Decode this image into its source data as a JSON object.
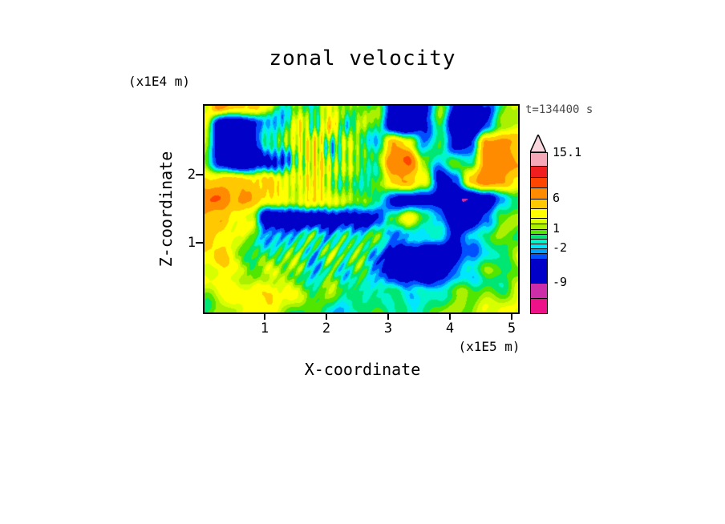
{
  "title": "zonal velocity",
  "timestamp_label": "t=134400 s",
  "axes": {
    "x_label": "X-coordinate",
    "x_unit": "(x1E5 m)",
    "x_ticks": [
      "1",
      "2",
      "3",
      "4",
      "5"
    ],
    "y_label": "Z-coordinate",
    "y_unit": "(x1E4 m)",
    "y_ticks": [
      "2",
      "1"
    ]
  },
  "colorbar": {
    "tip_color": "#FAD7DF",
    "labels": [
      "15.1",
      "6",
      "1",
      "-2",
      "-9"
    ],
    "segments": [
      {
        "color": "#F5A9B8",
        "h": 16,
        "label": "15.1"
      },
      {
        "color": "#F01E1E",
        "h": 14
      },
      {
        "color": "#FF4600",
        "h": 13
      },
      {
        "color": "#FF8C00",
        "h": 14
      },
      {
        "color": "#FFC800",
        "h": 12,
        "label": "6"
      },
      {
        "color": "#FFFF00",
        "h": 12
      },
      {
        "color": "#D7FF00",
        "h": 7
      },
      {
        "color": "#AAF000",
        "h": 7
      },
      {
        "color": "#50E600",
        "h": 6,
        "label": "1"
      },
      {
        "color": "#00E673",
        "h": 6
      },
      {
        "color": "#00F5C8",
        "h": 6
      },
      {
        "color": "#00E6FF",
        "h": 6
      },
      {
        "color": "#00A0FF",
        "h": 6,
        "label": "-2"
      },
      {
        "color": "#0050FF",
        "h": 7
      },
      {
        "color": "#0000C8",
        "h": 30
      },
      {
        "color": "#CC2EAA",
        "h": 19,
        "label": "-9"
      },
      {
        "color": "#EE1289",
        "h": 19
      }
    ]
  },
  "chart_data": {
    "type": "heatmap",
    "title": "zonal velocity",
    "xlabel": "X-coordinate (x1E5 m)",
    "ylabel": "Z-coordinate (x1E4 m)",
    "x_range": [
      0,
      5.12
    ],
    "z_range": [
      0,
      3.05
    ],
    "time_seconds": "t=134400 s",
    "legend_labels": [
      "15.1",
      "6",
      "1",
      "-2",
      "-9"
    ],
    "levels": [
      -10.5,
      -9,
      -4,
      -2.7,
      -2,
      -1.3,
      -0.6,
      0.2,
      1,
      1.8,
      2.6,
      4.3,
      6,
      8.5,
      10.5,
      12.5,
      15.1
    ],
    "colors": [
      "#EE1289",
      "#CC2EAA",
      "#0000C8",
      "#0050FF",
      "#00A0FF",
      "#00E6FF",
      "#00F5C8",
      "#00E673",
      "#50E600",
      "#AAF000",
      "#D7FF00",
      "#FFFF00",
      "#FFC800",
      "#FF8C00",
      "#FF4600",
      "#F01E1E",
      "#F5A9B8",
      "#FAD7DF"
    ],
    "grid": {
      "cols": 21,
      "rows": 12,
      "order": "top-row-first",
      "values": [
        [
          1,
          6,
          6,
          4,
          2.5,
          -1.5,
          3,
          -1,
          2.5,
          0.5,
          2,
          0.5,
          -7,
          -7.5,
          -4,
          0.5,
          -6,
          -7,
          -3,
          0.5,
          1
        ],
        [
          2,
          -6,
          -7,
          -5,
          -1.5,
          -2,
          4,
          -1,
          3,
          -1,
          2,
          0.5,
          -7,
          -8,
          -4,
          0.5,
          -7,
          -7.5,
          -3,
          1,
          1
        ],
        [
          2,
          -7,
          -7.5,
          -6,
          -2,
          0.5,
          3,
          4.5,
          -1,
          2.5,
          0.5,
          -1.5,
          5,
          4,
          -3,
          0.5,
          -6,
          -4,
          6,
          7.5,
          5
        ],
        [
          1,
          -5,
          -6,
          -6.5,
          -5,
          -4,
          2,
          3,
          1,
          2,
          0.5,
          -1,
          7,
          9,
          2,
          -2,
          0.5,
          1,
          7,
          8,
          5
        ],
        [
          6,
          5,
          5,
          4,
          4,
          3,
          2,
          4,
          2,
          1,
          -1,
          0.5,
          5,
          6,
          3,
          -5,
          -4,
          5,
          6,
          6,
          4
        ],
        [
          8,
          9,
          6,
          5,
          5,
          4,
          3,
          3,
          4,
          2,
          1,
          -2,
          -4,
          -6,
          -5,
          -6,
          -7,
          -8,
          -6,
          -3,
          0.5
        ],
        [
          6,
          6,
          3,
          2,
          -7,
          -8,
          -8,
          -7,
          -6,
          -5,
          -6,
          -4,
          1,
          3,
          0.5,
          -2,
          -7,
          -7,
          -4,
          0.5,
          1
        ],
        [
          5,
          4,
          2,
          0.5,
          -1,
          -2,
          -1,
          0.5,
          -1.5,
          0.5,
          -1,
          0.5,
          -2,
          -3,
          -2,
          -2,
          -4,
          -2,
          0.5,
          1,
          1
        ],
        [
          4,
          5,
          2,
          1,
          0.5,
          -1,
          0.5,
          -1.5,
          0.5,
          -1,
          0.5,
          -1.5,
          -6,
          -8,
          -8,
          -7,
          -6,
          -3,
          -1.5,
          0.5,
          1
        ],
        [
          2,
          2.5,
          2,
          1,
          2,
          0.5,
          0.5,
          -1,
          0.5,
          -1,
          0.5,
          -2,
          -5,
          -7,
          -7,
          -5,
          -3,
          -1.5,
          0.5,
          0.5,
          1
        ],
        [
          1,
          2.5,
          4,
          5,
          4,
          2.5,
          2,
          1,
          0.5,
          -1,
          -1.5,
          0.5,
          -1,
          -2,
          -1,
          0.5,
          0.5,
          0.5,
          1,
          1,
          2
        ],
        [
          0.5,
          1,
          2,
          3,
          2,
          1,
          0.5,
          0.5,
          -1,
          -1.5,
          0.5,
          0.5,
          -1,
          -1,
          0.5,
          0.5,
          1,
          1,
          2,
          2.5,
          2
        ]
      ]
    }
  }
}
